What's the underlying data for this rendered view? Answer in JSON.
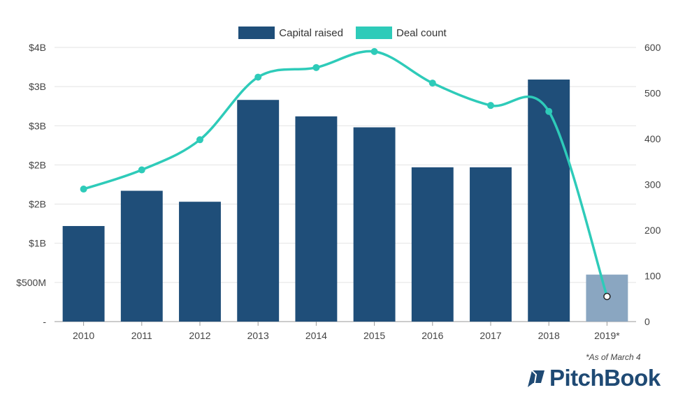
{
  "chart_data": {
    "type": "bar",
    "categories": [
      "2010",
      "2011",
      "2012",
      "2013",
      "2014",
      "2015",
      "2016",
      "2017",
      "2018",
      "2019*"
    ],
    "series": [
      {
        "name": "Capital raised",
        "axis": "left",
        "kind": "bar",
        "values": [
          1.22,
          1.67,
          1.53,
          2.83,
          2.62,
          2.48,
          1.97,
          1.97,
          3.09,
          0.6
        ],
        "highlight_last": true
      },
      {
        "name": "Deal count",
        "axis": "right",
        "kind": "line",
        "values": [
          290,
          332,
          398,
          535,
          556,
          591,
          522,
          473,
          460,
          55
        ]
      }
    ],
    "left_axis": {
      "ticks": [
        "-",
        "$500M",
        "$1B",
        "$2B",
        "$2B",
        "$3B",
        "$3B",
        "$4B"
      ],
      "tick_values": [
        0,
        0.5,
        1.0,
        1.5,
        2.0,
        2.5,
        3.0,
        3.5
      ],
      "range": [
        0,
        3.5
      ]
    },
    "right_axis": {
      "ticks": [
        "0",
        "100",
        "200",
        "300",
        "400",
        "500",
        "600"
      ],
      "tick_values": [
        0,
        100,
        200,
        300,
        400,
        500,
        600
      ],
      "range": [
        0,
        600
      ]
    },
    "legend_position": "top-center"
  },
  "legend": {
    "capital_label": "Capital raised",
    "deal_label": "Deal count"
  },
  "footnote": "*As of March 4",
  "brand": {
    "name": "PitchBook"
  },
  "colors": {
    "bar": "#1f4e79",
    "bar_highlight": "#8aa6c1",
    "line": "#2ecbb9",
    "grid": "#e3e3e3",
    "axis": "#999999",
    "brand": "#1f4a74"
  }
}
